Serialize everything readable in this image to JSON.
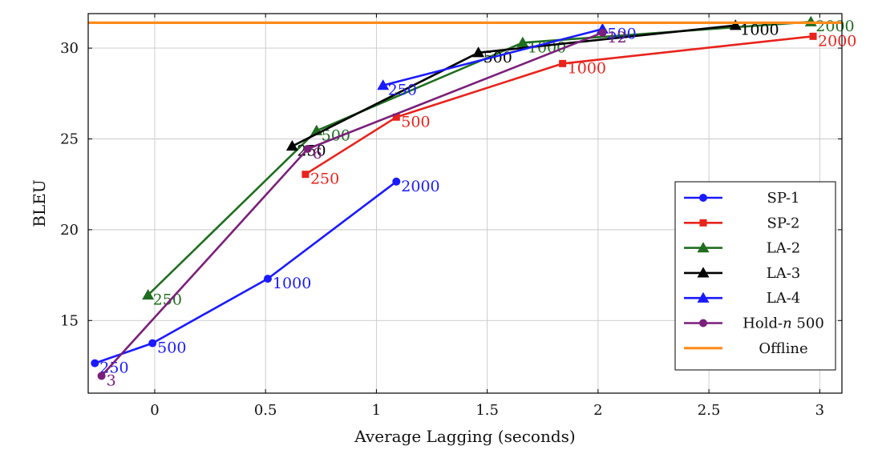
{
  "chart_data": {
    "type": "line",
    "title": "",
    "xlabel": "Average Lagging (seconds)",
    "ylabel": "BLEU",
    "xlim": [
      -0.3,
      3.1
    ],
    "ylim": [
      11,
      31.9
    ],
    "xticks": [
      0,
      0.5,
      1,
      1.5,
      2,
      2.5,
      3
    ],
    "xtick_labels": [
      "0",
      "0.5",
      "1",
      "1.5",
      "2",
      "2.5",
      "3"
    ],
    "yticks": [
      15,
      20,
      25,
      30
    ],
    "ytick_labels": [
      "15",
      "20",
      "25",
      "30"
    ],
    "grid": true,
    "legend_position": "bottom-right",
    "series": [
      {
        "name": "SP-1",
        "color": "#1a1aff",
        "marker": "circle",
        "points": [
          {
            "x": -0.27,
            "y": 12.65,
            "label": "250"
          },
          {
            "x": -0.01,
            "y": 13.75,
            "label": "500"
          },
          {
            "x": 0.51,
            "y": 17.3,
            "label": "1000"
          },
          {
            "x": 1.09,
            "y": 22.65,
            "label": "2000"
          }
        ]
      },
      {
        "name": "SP-2",
        "color": "#e8231c",
        "marker": "square",
        "points": [
          {
            "x": 0.68,
            "y": 23.05,
            "label": "250"
          },
          {
            "x": 1.09,
            "y": 26.2,
            "label": "500"
          },
          {
            "x": 1.84,
            "y": 29.15,
            "label": "1000"
          },
          {
            "x": 2.97,
            "y": 30.65,
            "label": "2000"
          }
        ]
      },
      {
        "name": "LA-2",
        "color": "#1f6e1f",
        "marker": "triangle",
        "points": [
          {
            "x": -0.03,
            "y": 16.4,
            "label": "250"
          },
          {
            "x": 0.73,
            "y": 25.45,
            "label": "500"
          },
          {
            "x": 1.66,
            "y": 30.3,
            "label": "1000"
          },
          {
            "x": 2.96,
            "y": 31.45,
            "label": "2000"
          }
        ]
      },
      {
        "name": "LA-3",
        "color": "#000000",
        "marker": "triangle",
        "points": [
          {
            "x": 0.62,
            "y": 24.6,
            "label": "250"
          },
          {
            "x": 1.46,
            "y": 29.75,
            "label": "500"
          },
          {
            "x": 2.62,
            "y": 31.25,
            "label": "1000"
          }
        ]
      },
      {
        "name": "LA-4",
        "color": "#1a1aff",
        "marker": "triangle",
        "points": [
          {
            "x": 1.03,
            "y": 27.95,
            "label": "250"
          },
          {
            "x": 2.02,
            "y": 31.05,
            "label": "500"
          }
        ]
      },
      {
        "name": "Hold-n 500",
        "color": "#7a1f7a",
        "marker": "circle",
        "points": [
          {
            "x": -0.24,
            "y": 11.95,
            "label": "3"
          },
          {
            "x": 0.69,
            "y": 24.45,
            "label": "6"
          },
          {
            "x": 2.02,
            "y": 30.85,
            "label": "12"
          }
        ]
      },
      {
        "name": "Offline",
        "color": "#ff8c1a",
        "marker": "none",
        "hline": 31.4
      }
    ],
    "legend": [
      {
        "prefix": "SP-1",
        "italic": "",
        "suffix": ""
      },
      {
        "prefix": "SP-2",
        "italic": "",
        "suffix": ""
      },
      {
        "prefix": "LA-2",
        "italic": "",
        "suffix": ""
      },
      {
        "prefix": "LA-3",
        "italic": "",
        "suffix": ""
      },
      {
        "prefix": "LA-4",
        "italic": "",
        "suffix": ""
      },
      {
        "prefix": "Hold-",
        "italic": "n",
        "suffix": " 500"
      },
      {
        "prefix": "Offline",
        "italic": "",
        "suffix": ""
      }
    ]
  }
}
